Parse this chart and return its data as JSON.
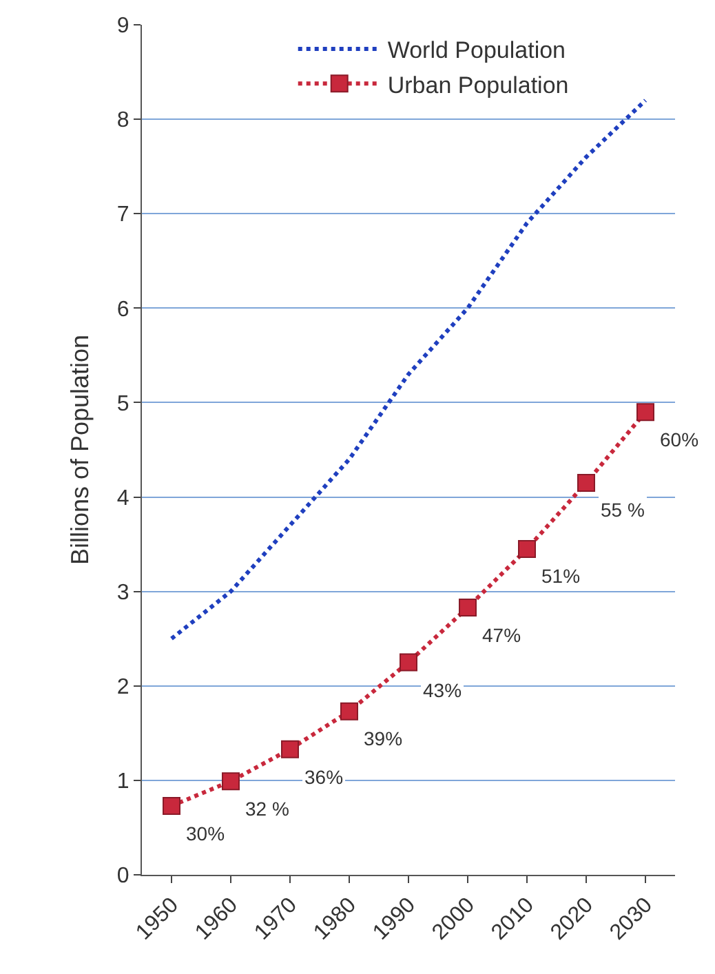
{
  "chart_data": {
    "type": "line",
    "ylabel": "Billions of Population",
    "categories": [
      "1950",
      "1960",
      "1970",
      "1980",
      "1990",
      "2000",
      "2010",
      "2020",
      "2030"
    ],
    "series": [
      {
        "name": "World Population",
        "color": "#1f3fbf",
        "values": [
          2.5,
          3.0,
          3.7,
          4.4,
          5.3,
          6.0,
          6.9,
          7.6,
          8.2
        ],
        "marker": "none",
        "line_style": "dotted"
      },
      {
        "name": "Urban Population",
        "color": "#c8283c",
        "values": [
          0.73,
          0.99,
          1.33,
          1.73,
          2.25,
          2.83,
          3.45,
          4.15,
          4.9
        ],
        "marker": "square",
        "line_style": "dotted"
      }
    ],
    "annotations": [
      {
        "text": "30%",
        "x": "1950",
        "y": 0.73
      },
      {
        "text": "32 %",
        "x": "1960",
        "y": 0.99
      },
      {
        "text": "36%",
        "x": "1970",
        "y": 1.33
      },
      {
        "text": "39%",
        "x": "1980",
        "y": 1.73
      },
      {
        "text": "43%",
        "x": "1990",
        "y": 2.25
      },
      {
        "text": "47%",
        "x": "2000",
        "y": 2.83
      },
      {
        "text": "51%",
        "x": "2010",
        "y": 3.45
      },
      {
        "text": "55 %",
        "x": "2020",
        "y": 4.15
      },
      {
        "text": "60%",
        "x": "2030",
        "y": 4.9
      }
    ],
    "ylim": [
      0,
      9
    ],
    "yticks": [
      0,
      1,
      2,
      3,
      4,
      5,
      6,
      7,
      8,
      9
    ],
    "grid": "y",
    "legend": "top"
  }
}
